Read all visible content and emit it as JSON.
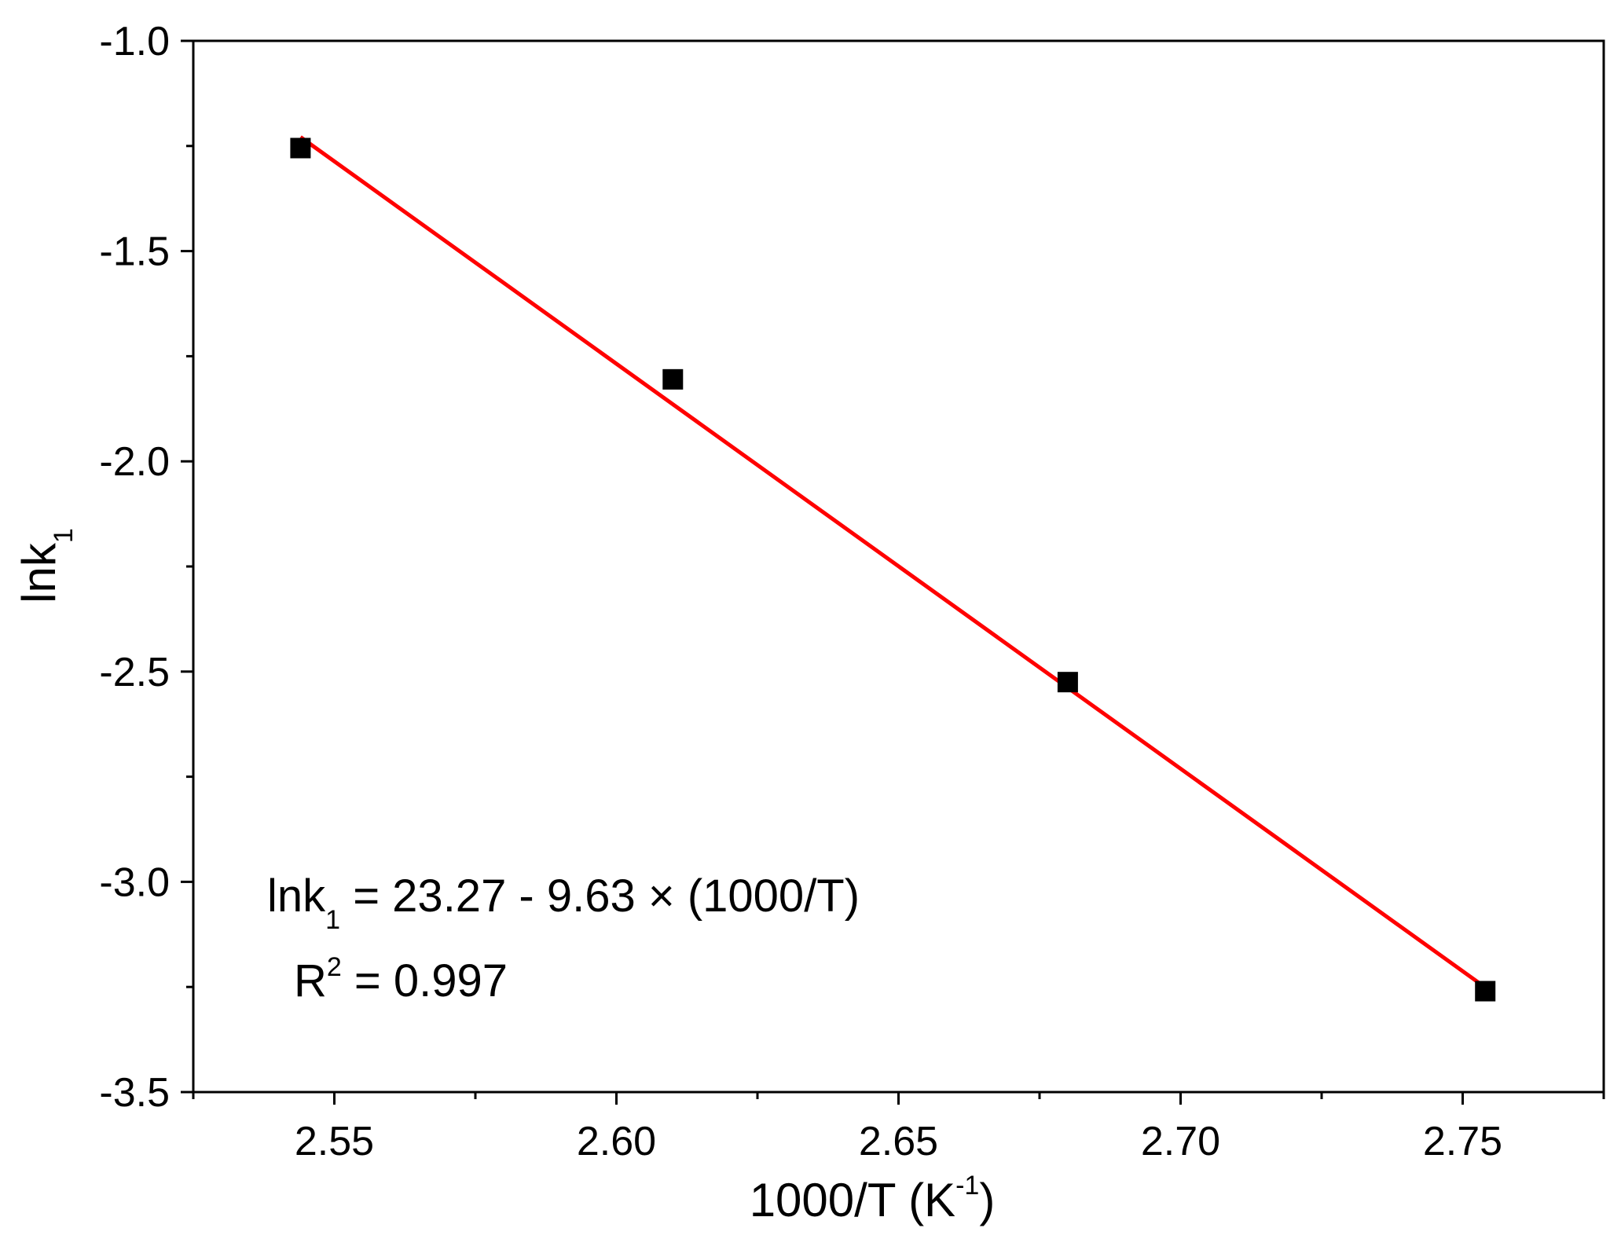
{
  "chart_data": {
    "type": "scatter",
    "title": "",
    "xlabel": {
      "base": "1000/T (K",
      "sup": "-1",
      "tail": ")"
    },
    "ylabel": {
      "base": "lnk",
      "sub": "1"
    },
    "xlim": [
      2.525,
      2.775
    ],
    "ylim": [
      -3.5,
      -1.0
    ],
    "xticks": [
      2.55,
      2.6,
      2.65,
      2.7,
      2.75
    ],
    "xtick_labels": [
      "2.55",
      "2.60",
      "2.65",
      "2.70",
      "2.75"
    ],
    "yticks": [
      -1.0,
      -1.5,
      -2.0,
      -2.5,
      -3.0,
      -3.5
    ],
    "ytick_labels": [
      "-1.0",
      "-1.5",
      "-2.0",
      "-2.5",
      "-3.0",
      "-3.5"
    ],
    "grid": false,
    "series": [
      {
        "type": "scatter",
        "marker": "square",
        "color": "#000000",
        "x": [
          2.544,
          2.61,
          2.68,
          2.754
        ],
        "y": [
          -1.255,
          -1.805,
          -2.525,
          -3.26
        ]
      },
      {
        "type": "line",
        "color": "#ff0000",
        "fit": {
          "intercept": 23.27,
          "slope": -9.63
        },
        "x_range": [
          2.544,
          2.754
        ]
      }
    ],
    "annotations": {
      "equation": {
        "pre": "lnk",
        "sub": "1",
        "post": " = 23.27 - 9.63 × (1000/T)"
      },
      "r2": {
        "pre": "R",
        "sup": "2",
        "post": " = 0.997"
      }
    }
  }
}
